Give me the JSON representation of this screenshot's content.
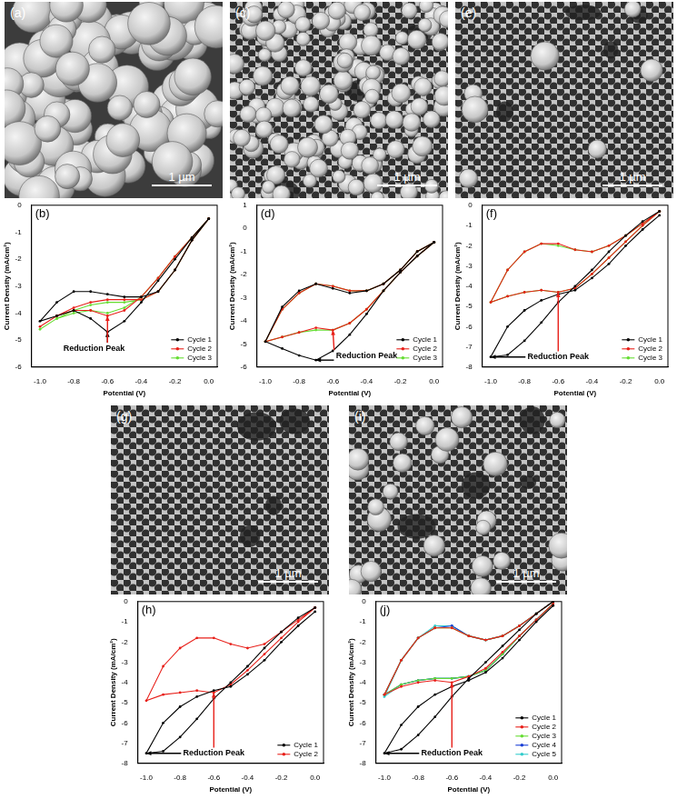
{
  "images": [
    {
      "label": "(a)",
      "scale_bar": "1 µm"
    },
    {
      "label": "(c)",
      "scale_bar": "1 µm"
    },
    {
      "label": "(e)",
      "scale_bar": "1 µm"
    },
    {
      "label": "(g)",
      "scale_bar": "1 µm"
    },
    {
      "label": "(i)",
      "scale_bar": "1 µm"
    }
  ],
  "chart_data": [
    {
      "type": "line",
      "title": "(b)",
      "x_label": "Potential (V)",
      "y_label": "Current Density (mA/cm²)",
      "x": [
        0,
        -0.1,
        -0.2,
        -0.3,
        -0.4,
        -0.5,
        -0.6,
        -0.7,
        -0.8,
        -0.9,
        -1,
        -0.9,
        -0.8,
        -0.7,
        -0.6,
        -0.5,
        -0.4,
        -0.3,
        -0.2,
        -0.1,
        0
      ],
      "xlim": [
        -1.05,
        0.05
      ],
      "xticks": [
        {
          "value": -1,
          "label": "-1.0"
        },
        {
          "value": -0.8,
          "label": "-0.8"
        },
        {
          "value": -0.6,
          "label": "-0.6"
        },
        {
          "value": -0.4,
          "label": "-0.4"
        },
        {
          "value": -0.2,
          "label": "-0.2"
        },
        {
          "value": 0,
          "label": "0.0"
        }
      ],
      "ylim": [
        -6,
        0
      ],
      "yticks": [
        -6,
        -5,
        -4,
        -3,
        -2,
        -1,
        0
      ],
      "grid": false,
      "legend": "bottom right",
      "marker": "circle",
      "series": [
        {
          "name": "Cycle 1",
          "color": "#000000",
          "values": [
            -0.5,
            -1.3,
            -2.4,
            -3.2,
            -3.4,
            -3.4,
            -3.3,
            -3.2,
            -3.2,
            -3.6,
            -4.3,
            -4.1,
            -3.9,
            -4.2,
            -4.7,
            -4.3,
            -3.6,
            -2.8,
            -2.0,
            -1.2,
            -0.5
          ]
        },
        {
          "name": "Cycle 2",
          "color": "#e8201a",
          "values": [
            -0.5,
            -1.3,
            -2.4,
            -3.2,
            -3.5,
            -3.5,
            -3.5,
            -3.6,
            -3.8,
            -4.1,
            -4.5,
            -4.1,
            -3.9,
            -3.9,
            -4.1,
            -3.9,
            -3.4,
            -2.7,
            -1.9,
            -1.2,
            -0.5
          ]
        },
        {
          "name": "Cycle 3",
          "color": "#66dd33",
          "values": [
            -0.5,
            -1.3,
            -2.4,
            -3.2,
            -3.5,
            -3.6,
            -3.6,
            -3.7,
            -3.9,
            -4.2,
            -4.6,
            -4.2,
            -4.0,
            -3.9,
            -4.0,
            -3.8,
            -3.4,
            -2.7,
            -1.9,
            -1.2,
            -0.5
          ]
        }
      ],
      "annotations": [
        {
          "text": "Reduction Peak",
          "x": -0.68,
          "y": -5.3
        }
      ]
    },
    {
      "type": "line",
      "title": "(d)",
      "x_label": "Potential (V)",
      "y_label": "Current Density (mA/cm²)",
      "x": [
        0,
        -0.1,
        -0.2,
        -0.3,
        -0.4,
        -0.5,
        -0.6,
        -0.7,
        -0.8,
        -0.9,
        -1,
        -0.9,
        -0.8,
        -0.7,
        -0.6,
        -0.5,
        -0.4,
        -0.3,
        -0.2,
        -0.1,
        0
      ],
      "xlim": [
        -1.05,
        0.05
      ],
      "xticks": [
        {
          "value": -1,
          "label": "-1.0"
        },
        {
          "value": -0.8,
          "label": "-0.8"
        },
        {
          "value": -0.6,
          "label": "-0.6"
        },
        {
          "value": -0.4,
          "label": "-0.4"
        },
        {
          "value": -0.2,
          "label": "-0.2"
        },
        {
          "value": 0,
          "label": "0.0"
        }
      ],
      "ylim": [
        -6,
        1
      ],
      "yticks": [
        -6,
        -5,
        -4,
        -3,
        -2,
        -1,
        0,
        1
      ],
      "grid": false,
      "legend": "bottom right",
      "marker": "circle",
      "series": [
        {
          "name": "Cycle 1",
          "color": "#000000",
          "values": [
            -0.6,
            -1.0,
            -1.8,
            -2.4,
            -2.7,
            -2.8,
            -2.6,
            -2.4,
            -2.7,
            -3.4,
            -4.9,
            -5.2,
            -5.5,
            -5.7,
            -5.3,
            -4.6,
            -3.7,
            -2.7,
            -1.9,
            -1.2,
            -0.6
          ]
        },
        {
          "name": "Cycle 2",
          "color": "#e8201a",
          "values": [
            -0.6,
            -1.0,
            -1.8,
            -2.4,
            -2.7,
            -2.7,
            -2.5,
            -2.4,
            -2.8,
            -3.5,
            -4.9,
            -4.7,
            -4.5,
            -4.3,
            -4.4,
            -4.1,
            -3.5,
            -2.7,
            -1.9,
            -1.2,
            -0.6
          ]
        },
        {
          "name": "Cycle 3",
          "color": "#66dd33",
          "values": [
            -0.6,
            -1.0,
            -1.8,
            -2.4,
            -2.7,
            -2.7,
            -2.5,
            -2.4,
            -2.8,
            -3.5,
            -4.9,
            -4.7,
            -4.5,
            -4.4,
            -4.4,
            -4.1,
            -3.5,
            -2.7,
            -1.9,
            -1.2,
            -0.6
          ]
        }
      ],
      "annotations": [
        {
          "text": "Reduction Peak",
          "x": -0.4,
          "y": -5.5
        }
      ]
    },
    {
      "type": "line",
      "title": "(f)",
      "x_label": "Potential (V)",
      "y_label": "Current Density (mA/cm²)",
      "x": [
        0,
        -0.1,
        -0.2,
        -0.3,
        -0.4,
        -0.5,
        -0.6,
        -0.7,
        -0.8,
        -0.9,
        -1,
        -0.9,
        -0.8,
        -0.7,
        -0.6,
        -0.5,
        -0.4,
        -0.3,
        -0.2,
        -0.1,
        0
      ],
      "xlim": [
        -1.05,
        0.05
      ],
      "xticks": [
        {
          "value": -1,
          "label": "-1.0"
        },
        {
          "value": -0.8,
          "label": "-0.8"
        },
        {
          "value": -0.6,
          "label": "-0.6"
        },
        {
          "value": -0.4,
          "label": "-0.4"
        },
        {
          "value": -0.2,
          "label": "-0.2"
        },
        {
          "value": 0,
          "label": "0.0"
        }
      ],
      "ylim": [
        -8,
        0
      ],
      "yticks": [
        -8,
        -7,
        -6,
        -5,
        -4,
        -3,
        -2,
        -1,
        0
      ],
      "grid": false,
      "legend": "bottom right",
      "marker": "circle",
      "series": [
        {
          "name": "Cycle 1",
          "color": "#000000",
          "values": [
            -0.3,
            -0.8,
            -1.5,
            -2.3,
            -3.2,
            -4.0,
            -4.8,
            -5.8,
            -6.7,
            -7.4,
            -7.5,
            -6.0,
            -5.2,
            -4.7,
            -4.4,
            -4.2,
            -3.6,
            -2.9,
            -2.0,
            -1.2,
            -0.5
          ]
        },
        {
          "name": "Cycle 2",
          "color": "#e8201a",
          "values": [
            -0.3,
            -0.9,
            -1.5,
            -2.0,
            -2.3,
            -2.2,
            -1.9,
            -1.9,
            -2.3,
            -3.2,
            -4.8,
            -4.5,
            -4.3,
            -4.2,
            -4.3,
            -4.1,
            -3.4,
            -2.6,
            -1.8,
            -1.0,
            -0.3
          ]
        },
        {
          "name": "Cycle 3",
          "color": "#66dd33",
          "values": [
            -0.3,
            -0.9,
            -1.5,
            -2.0,
            -2.3,
            -2.2,
            -2.0,
            -1.9,
            -2.3,
            -3.2,
            -4.8,
            -4.5,
            -4.3,
            -4.2,
            -4.3,
            -4.1,
            -3.4,
            -2.6,
            -1.8,
            -1.0,
            -0.3
          ]
        }
      ],
      "annotations": [
        {
          "text": "Reduction Peak",
          "x": -0.6,
          "y": -7.5
        }
      ]
    },
    {
      "type": "line",
      "title": "(h)",
      "x_label": "Potential (V)",
      "y_label": "Current Density (mA/cm²)",
      "x": [
        0,
        -0.1,
        -0.2,
        -0.3,
        -0.4,
        -0.5,
        -0.6,
        -0.7,
        -0.8,
        -0.9,
        -1,
        -0.9,
        -0.8,
        -0.7,
        -0.6,
        -0.5,
        -0.4,
        -0.3,
        -0.2,
        -0.1,
        0
      ],
      "xlim": [
        -1.05,
        0.05
      ],
      "xticks": [
        {
          "value": -1,
          "label": "-1.0"
        },
        {
          "value": -0.8,
          "label": "-0.8"
        },
        {
          "value": -0.6,
          "label": "-0.6"
        },
        {
          "value": -0.4,
          "label": "-0.4"
        },
        {
          "value": -0.2,
          "label": "-0.2"
        },
        {
          "value": 0,
          "label": "0.0"
        }
      ],
      "ylim": [
        -8,
        0
      ],
      "yticks": [
        -8,
        -7,
        -6,
        -5,
        -4,
        -3,
        -2,
        -1,
        0
      ],
      "grid": false,
      "legend": "bottom right",
      "marker": "circle",
      "series": [
        {
          "name": "Cycle 1",
          "color": "#000000",
          "values": [
            -0.3,
            -0.8,
            -1.5,
            -2.3,
            -3.2,
            -4.0,
            -4.8,
            -5.8,
            -6.7,
            -7.4,
            -7.5,
            -6.0,
            -5.2,
            -4.7,
            -4.4,
            -4.2,
            -3.6,
            -2.9,
            -2.0,
            -1.2,
            -0.5
          ]
        },
        {
          "name": "Cycle 2",
          "color": "#e8201a",
          "values": [
            -0.3,
            -0.9,
            -1.5,
            -2.1,
            -2.3,
            -2.1,
            -1.8,
            -1.8,
            -2.3,
            -3.2,
            -4.9,
            -4.6,
            -4.5,
            -4.4,
            -4.5,
            -4.1,
            -3.4,
            -2.6,
            -1.8,
            -1.0,
            -0.3
          ]
        }
      ],
      "annotations": [
        {
          "text": "Reduction Peak",
          "x": -0.6,
          "y": -7.5
        }
      ]
    },
    {
      "type": "line",
      "title": "(j)",
      "x_label": "Potential (V)",
      "y_label": "Current Density (mA/cm²)",
      "x": [
        0,
        -0.1,
        -0.2,
        -0.3,
        -0.4,
        -0.5,
        -0.6,
        -0.7,
        -0.8,
        -0.9,
        -1,
        -0.9,
        -0.8,
        -0.7,
        -0.6,
        -0.5,
        -0.4,
        -0.3,
        -0.2,
        -0.1,
        0
      ],
      "xlim": [
        -1.05,
        0.05
      ],
      "xticks": [
        {
          "value": -1,
          "label": "-1.0"
        },
        {
          "value": -0.8,
          "label": "-0.8"
        },
        {
          "value": -0.6,
          "label": "-0.6"
        },
        {
          "value": -0.4,
          "label": "-0.4"
        },
        {
          "value": -0.2,
          "label": "-0.2"
        },
        {
          "value": 0,
          "label": "0.0"
        }
      ],
      "ylim": [
        -8,
        0
      ],
      "yticks": [
        -8,
        -7,
        -6,
        -5,
        -4,
        -3,
        -2,
        -1,
        0
      ],
      "grid": false,
      "legend": "bottom right",
      "marker": "circle",
      "series": [
        {
          "name": "Cycle 1",
          "color": "#000000",
          "values": [
            0,
            -0.6,
            -1.4,
            -2.2,
            -3.0,
            -3.8,
            -4.7,
            -5.7,
            -6.6,
            -7.3,
            -7.5,
            -6.1,
            -5.2,
            -4.6,
            -4.2,
            -3.9,
            -3.5,
            -2.8,
            -1.9,
            -1.0,
            -0.2
          ]
        },
        {
          "name": "Cycle 2",
          "color": "#e8201a",
          "values": [
            0,
            -0.6,
            -1.2,
            -1.7,
            -1.9,
            -1.7,
            -1.3,
            -1.3,
            -1.8,
            -2.9,
            -4.6,
            -4.2,
            -4.0,
            -3.9,
            -4.0,
            -3.7,
            -3.3,
            -2.5,
            -1.7,
            -0.9,
            -0.1
          ]
        },
        {
          "name": "Cycle 3",
          "color": "#66dd33",
          "values": [
            0,
            -0.6,
            -1.2,
            -1.7,
            -1.9,
            -1.7,
            -1.3,
            -1.3,
            -1.8,
            -2.9,
            -4.6,
            -4.1,
            -3.9,
            -3.8,
            -3.8,
            -3.7,
            -3.4,
            -2.6,
            -1.7,
            -0.9,
            -0.1
          ]
        },
        {
          "name": "Cycle 4",
          "color": "#1a3fd6",
          "values": [
            0,
            -0.6,
            -1.2,
            -1.7,
            -1.9,
            -1.7,
            -1.2,
            -1.3,
            -1.8,
            -2.9,
            -4.6,
            -4.1,
            -3.9,
            -3.8,
            -3.8,
            -3.7,
            -3.4,
            -2.6,
            -1.7,
            -0.9,
            -0.1
          ]
        },
        {
          "name": "Cycle 5",
          "color": "#33cccc",
          "values": [
            0,
            -0.6,
            -1.2,
            -1.7,
            -1.9,
            -1.7,
            -1.2,
            -1.2,
            -1.8,
            -2.9,
            -4.7,
            -4.1,
            -3.9,
            -3.8,
            -3.8,
            -3.7,
            -3.4,
            -2.6,
            -1.7,
            -0.9,
            -0.1
          ]
        }
      ],
      "annotations": [
        {
          "text": "Reduction Peak",
          "x": -0.6,
          "y": -7.5
        }
      ]
    }
  ]
}
